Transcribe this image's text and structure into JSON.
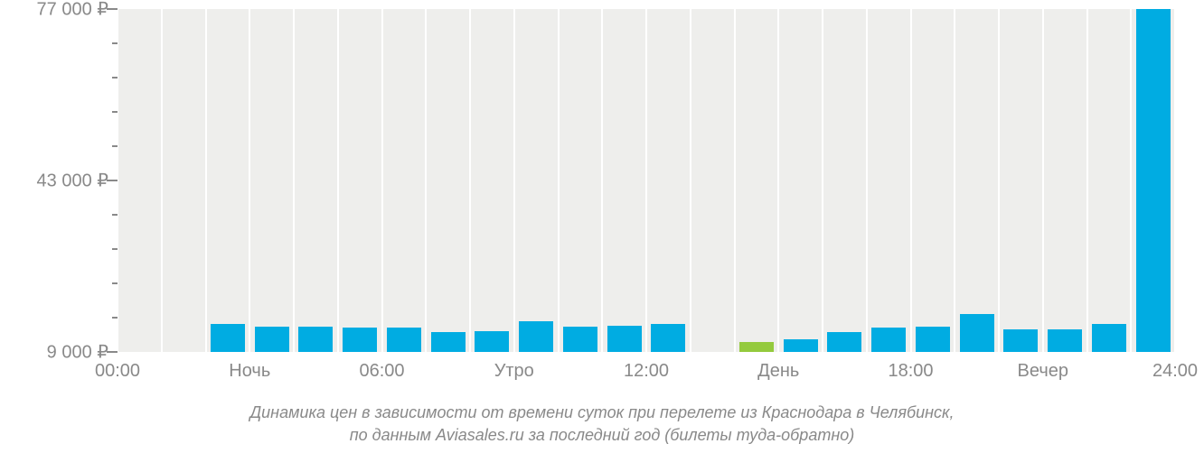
{
  "chart": {
    "type": "bar",
    "background_color": "#ffffff",
    "plot_bg_color": "#eeeeec",
    "gridline_color": "#ffffff",
    "axis_tick_color": "#898989",
    "text_color": "#898989",
    "bar_color": "#00ace2",
    "lowest_bar_color": "#94ca3d",
    "label_fontsize": 20,
    "caption_fontsize": 18,
    "ylim": [
      9000,
      77000
    ],
    "y_major_ticks": [
      {
        "value": 77000,
        "label": "77 000 ₽"
      },
      {
        "value": 43000,
        "label": "43 000 ₽"
      },
      {
        "value": 9000,
        "label": "9 000 ₽"
      }
    ],
    "y_minor_count_between": 4,
    "x_hour_labels": [
      {
        "hour": 0,
        "label": "00:00"
      },
      {
        "hour": 6,
        "label": "06:00"
      },
      {
        "hour": 12,
        "label": "12:00"
      },
      {
        "hour": 18,
        "label": "18:00"
      },
      {
        "hour": 24,
        "label": "24:00"
      }
    ],
    "x_period_labels": [
      {
        "center_hour": 3,
        "label": "Ночь"
      },
      {
        "center_hour": 9,
        "label": "Утро"
      },
      {
        "center_hour": 15,
        "label": "День"
      },
      {
        "center_hour": 21,
        "label": "Вечер"
      }
    ],
    "hours_total": 24,
    "bars": [
      {
        "hour": 0,
        "value": null,
        "lowest": false
      },
      {
        "hour": 1,
        "value": null,
        "lowest": false
      },
      {
        "hour": 2,
        "value": 14500,
        "lowest": false
      },
      {
        "hour": 3,
        "value": 14000,
        "lowest": false
      },
      {
        "hour": 4,
        "value": 14000,
        "lowest": false
      },
      {
        "hour": 5,
        "value": 13800,
        "lowest": false
      },
      {
        "hour": 6,
        "value": 13800,
        "lowest": false
      },
      {
        "hour": 7,
        "value": 13000,
        "lowest": false
      },
      {
        "hour": 8,
        "value": 13200,
        "lowest": false
      },
      {
        "hour": 9,
        "value": 15000,
        "lowest": false
      },
      {
        "hour": 10,
        "value": 14000,
        "lowest": false
      },
      {
        "hour": 11,
        "value": 14200,
        "lowest": false
      },
      {
        "hour": 12,
        "value": 14500,
        "lowest": false
      },
      {
        "hour": 13,
        "value": null,
        "lowest": false
      },
      {
        "hour": 14,
        "value": 11000,
        "lowest": true
      },
      {
        "hour": 15,
        "value": 11500,
        "lowest": false
      },
      {
        "hour": 16,
        "value": 13000,
        "lowest": false
      },
      {
        "hour": 17,
        "value": 13800,
        "lowest": false
      },
      {
        "hour": 18,
        "value": 14000,
        "lowest": false
      },
      {
        "hour": 19,
        "value": 16500,
        "lowest": false
      },
      {
        "hour": 20,
        "value": 13500,
        "lowest": false
      },
      {
        "hour": 21,
        "value": 13500,
        "lowest": false
      },
      {
        "hour": 22,
        "value": 14500,
        "lowest": false
      },
      {
        "hour": 23,
        "value": 77000,
        "lowest": false
      }
    ],
    "bar_width_ratio": 0.78
  },
  "caption": {
    "line1": "Динамика цен в зависимости от времени суток при перелете из Краснодара в Челябинск,",
    "line2": "по данным Aviasales.ru за последний год (билеты туда-обратно)"
  }
}
